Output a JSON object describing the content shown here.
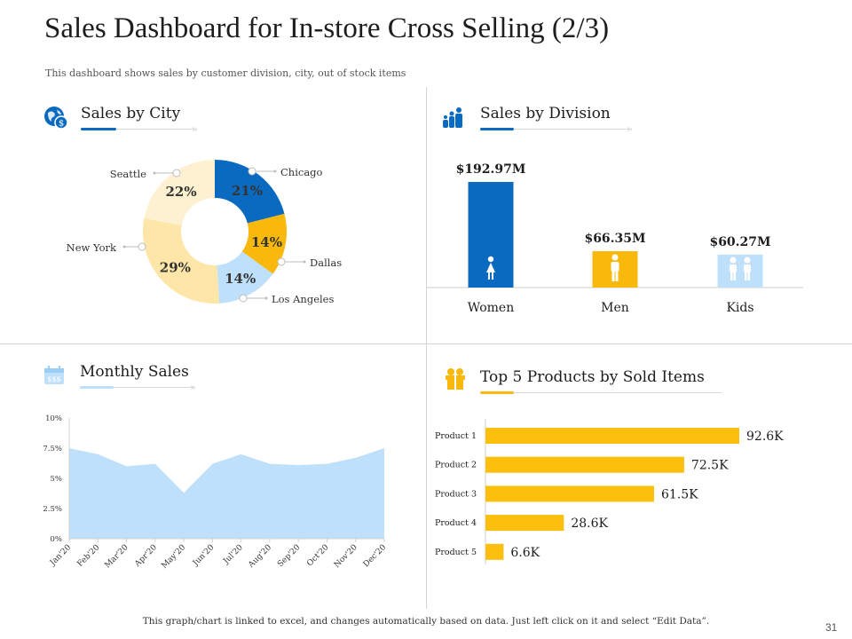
{
  "header": {
    "title": "Sales Dashboard for In-store Cross Selling (2/3)",
    "subtitle": "This dashboard shows sales by customer division, city, out of stock items"
  },
  "sections": {
    "city": {
      "title": "Sales by City",
      "icon": "globe-dollar-icon"
    },
    "division": {
      "title": "Sales by Division",
      "icon": "people-group-icon"
    },
    "monthly": {
      "title": "Monthly Sales",
      "icon": "calendar-icon"
    },
    "products": {
      "title": "Top 5 Products by Sold Items",
      "icon": "gift-box-icon"
    }
  },
  "colors": {
    "blue": "#0a6ac0",
    "gold": "#f8b90c",
    "lightblue": "#bfe0fb",
    "lightyellow": "#fde6a8",
    "cream": "#fef1d2",
    "bar_gold": "#fcbf0e"
  },
  "chart_data": [
    {
      "type": "pie",
      "style": "donut",
      "title": "Sales by City",
      "labels": [
        "Chicago",
        "Dallas",
        "Los Angeles",
        "New York",
        "Seattle"
      ],
      "values": [
        21,
        14,
        14,
        29,
        22
      ],
      "value_labels": [
        "21%",
        "14%",
        "14%",
        "29%",
        "22%"
      ],
      "colors": [
        "#0a6ac0",
        "#f8b90c",
        "#bfe0fb",
        "#fde6a8",
        "#fef1d2"
      ]
    },
    {
      "type": "bar",
      "title": "Sales by Division",
      "categories": [
        "Women",
        "Men",
        "Kids"
      ],
      "values": [
        192.97,
        66.35,
        60.27
      ],
      "value_labels": [
        "$192.97M",
        "$66.35M",
        "$60.27M"
      ],
      "unit": "$M",
      "colors": [
        "#0a6ac0",
        "#f8b90c",
        "#bfe0fb"
      ],
      "icons": [
        "woman-icon",
        "man-icon",
        "kids-icon"
      ]
    },
    {
      "type": "area",
      "title": "Monthly Sales",
      "x": [
        "Jan'20",
        "Feb'20",
        "Mar'20",
        "Apr'20",
        "May'20",
        "Jun'20",
        "Jul'20",
        "Aug'20",
        "Sep'20",
        "Oct'20",
        "Nov'20",
        "Dec'20"
      ],
      "values": [
        7.5,
        7.0,
        6.0,
        6.2,
        3.8,
        6.2,
        7.0,
        6.2,
        6.1,
        6.2,
        6.7,
        7.5
      ],
      "ylim": [
        0,
        10
      ],
      "yticks": [
        "0%",
        "2.5%",
        "5%",
        "7.5%",
        "10%"
      ],
      "ytick_values": [
        0,
        2.5,
        5,
        7.5,
        10
      ],
      "color": "#bfe0fb"
    },
    {
      "type": "bar",
      "orientation": "horizontal",
      "title": "Top 5 Products by Sold Items",
      "categories": [
        "Product 1",
        "Product 2",
        "Product 3",
        "Product 4",
        "Product 5"
      ],
      "values": [
        92.6,
        72.5,
        61.5,
        28.6,
        6.6
      ],
      "value_labels": [
        "92.6K",
        "72.5K",
        "61.5K",
        "28.6K",
        "6.6K"
      ],
      "unit": "K",
      "color": "#fcbf0e"
    }
  ],
  "footer": {
    "note": "This graph/chart is linked to excel, and changes automatically based on data. Just left click on it and select “Edit Data”.",
    "page_number": "31"
  }
}
